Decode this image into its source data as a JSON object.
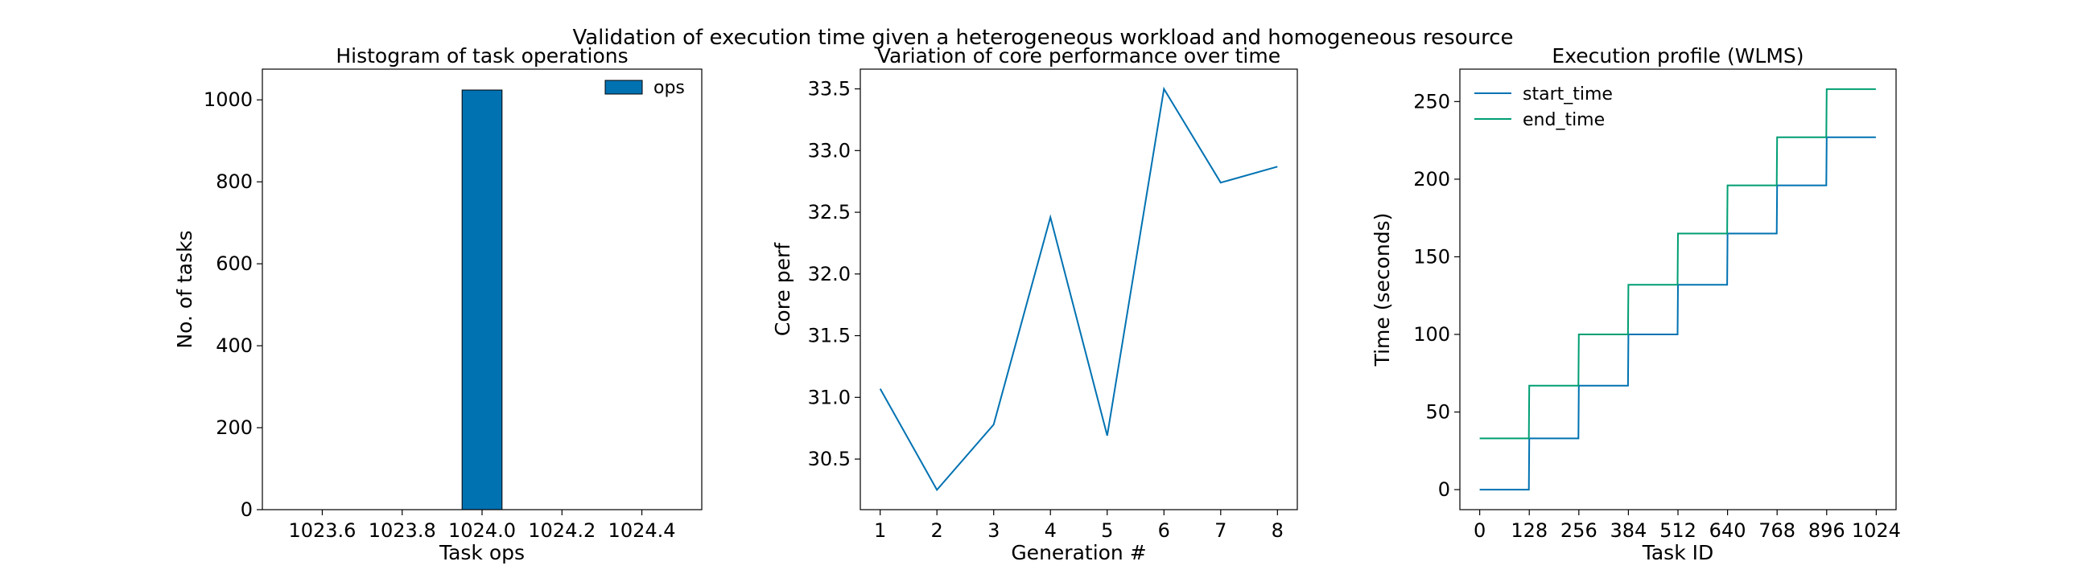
{
  "figure": {
    "suptitle": "Validation of execution time given a heterogeneous workload and homogeneous resource"
  },
  "chart_data": [
    {
      "type": "bar",
      "title": "Histogram of task operations",
      "xlabel": "Task ops",
      "ylabel": "No. of tasks",
      "xlim": [
        1023.45,
        1024.55
      ],
      "ylim": [
        0,
        1075
      ],
      "xticks": [
        1023.6,
        1023.8,
        1024.0,
        1024.2,
        1024.4
      ],
      "xtick_labels": [
        "1023.6",
        "1023.8",
        "1024.0",
        "1024.2",
        "1024.4"
      ],
      "yticks": [
        0,
        200,
        400,
        600,
        800,
        1000
      ],
      "ytick_labels": [
        "0",
        "200",
        "400",
        "600",
        "800",
        "1000"
      ],
      "bins": [
        {
          "x0": 1023.95,
          "x1": 1024.05,
          "count": 1024
        }
      ],
      "series": [
        {
          "name": "ops",
          "color": "#0072b2"
        }
      ],
      "legend_position": "upper right",
      "grid": false
    },
    {
      "type": "line",
      "title": "Variation of core performance over time",
      "xlabel": "Generation #",
      "ylabel": "Core perf",
      "xlim": [
        0.65,
        8.35
      ],
      "ylim": [
        30.09,
        33.66
      ],
      "xticks": [
        1,
        2,
        3,
        4,
        5,
        6,
        7,
        8
      ],
      "xtick_labels": [
        "1",
        "2",
        "3",
        "4",
        "5",
        "6",
        "7",
        "8"
      ],
      "yticks": [
        30.5,
        31.0,
        31.5,
        32.0,
        32.5,
        33.0,
        33.5
      ],
      "ytick_labels": [
        "30.5",
        "31.0",
        "31.5",
        "32.0",
        "32.5",
        "33.0",
        "33.5"
      ],
      "x": [
        1,
        2,
        3,
        4,
        5,
        6,
        7,
        8
      ],
      "series": [
        {
          "values": [
            31.07,
            30.25,
            30.78,
            32.46,
            30.69,
            33.5,
            32.74,
            32.87
          ],
          "color": "#0072b2"
        }
      ],
      "grid": false
    },
    {
      "type": "line",
      "title": "Execution profile (WLMS)",
      "xlabel": "Task ID",
      "ylabel": "Time (seconds)",
      "xlim": [
        -51.2,
        1075.2
      ],
      "ylim": [
        -12.9,
        270.9
      ],
      "xticks": [
        0,
        128,
        256,
        384,
        512,
        640,
        768,
        896,
        1024
      ],
      "xtick_labels": [
        "0",
        "128",
        "256",
        "384",
        "512",
        "640",
        "768",
        "896",
        "1024"
      ],
      "yticks": [
        0,
        50,
        100,
        150,
        200,
        250
      ],
      "ytick_labels": [
        "0",
        "50",
        "100",
        "150",
        "200",
        "250"
      ],
      "legend_position": "upper left",
      "series": [
        {
          "name": "start_time",
          "color": "#0072b2",
          "x": [
            0,
            127,
            128,
            255,
            256,
            383,
            384,
            511,
            512,
            639,
            640,
            767,
            768,
            895,
            896,
            1023
          ],
          "values": [
            0,
            0,
            33,
            33,
            67,
            67,
            100,
            100,
            132,
            132,
            165,
            165,
            196,
            196,
            227,
            227
          ]
        },
        {
          "name": "end_time",
          "color": "#009e73",
          "x": [
            0,
            127,
            128,
            255,
            256,
            383,
            384,
            511,
            512,
            639,
            640,
            767,
            768,
            895,
            896,
            1023
          ],
          "values": [
            33,
            33,
            67,
            67,
            100,
            100,
            132,
            132,
            165,
            165,
            196,
            196,
            227,
            227,
            258,
            258
          ]
        }
      ],
      "grid": false
    }
  ]
}
